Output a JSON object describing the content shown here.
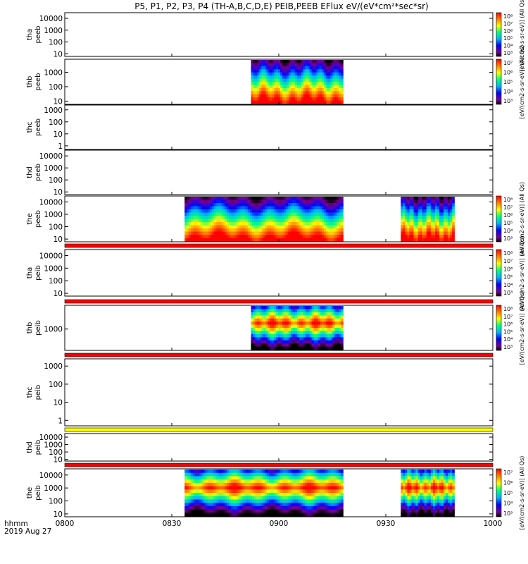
{
  "title": "P5, P1, P2, P3, P4 (TH-A,B,C,D,E) PEIB,PEEB EFlux eV/(eV*cm²*sec*sr)",
  "xaxis": {
    "ticks": [
      "0800",
      "0830",
      "0900",
      "0930",
      "1000"
    ],
    "tick_hours": [
      8.0,
      8.5,
      9.0,
      9.5,
      10.0
    ],
    "range_hours": [
      8.0,
      10.0
    ],
    "stamp_line1": "hhmm",
    "stamp_line2": "2019 Aug 27"
  },
  "colors": {
    "sat_bar_red": "#ff0000",
    "sat_bar_yellow": "#ffff00",
    "colormap": [
      "#000000",
      "#7a0096",
      "#0000ff",
      "#00b4ff",
      "#00ff80",
      "#ffff00",
      "#ff8000",
      "#ff0000"
    ]
  },
  "colorbars": [
    {
      "panel": "tha_peeb",
      "ticks": [
        "10⁸",
        "10⁷",
        "10⁶",
        "10⁵",
        "10⁴",
        "10³"
      ],
      "label": "[eV/(cm2-s-sr-eV)] (All Qs)"
    },
    {
      "panel": "thb_peeb",
      "ticks": [
        "10⁷",
        "10⁶",
        "10⁵",
        "10⁴",
        "10³"
      ],
      "label": "[eV/(cm2-s-sr-eV)] (All Qs)"
    },
    {
      "panel": "the_peeb",
      "ticks": [
        "10⁸",
        "10⁷",
        "10⁶",
        "10⁵",
        "10⁴",
        "10³"
      ],
      "label": "[eV/(cm2-s-sr-eV)] (All Qs)"
    },
    {
      "panel": "tha_peib",
      "ticks": [
        "10⁸",
        "10⁷",
        "10⁶",
        "10⁵",
        "10⁴",
        "10³"
      ],
      "label": "[eV/(cm2-s-sr-eV)] (All Qs)"
    },
    {
      "panel": "thb_peib",
      "ticks": [
        "10⁸",
        "10⁷",
        "10⁶",
        "10⁵",
        "10⁴",
        "10³"
      ],
      "label": "[eV/(cm2-s-sr-eV)] (All Qs)"
    },
    {
      "panel": "the_peib",
      "ticks": [
        "10⁷",
        "10⁶",
        "10⁵",
        "10⁴",
        "10³"
      ],
      "label": "[eV/(cm2-s-sr-eV)] (All Qs)"
    }
  ],
  "chart_data": [
    {
      "type": "heatmap",
      "id": "tha_peeb",
      "ylabel_line1": "tha",
      "ylabel_line2": "peeb",
      "yscale": "log",
      "yticks": [
        "10000",
        "1000",
        "100",
        "10"
      ],
      "ytick_values": [
        10000,
        1000,
        100,
        10
      ],
      "ylim": [
        6,
        30000
      ],
      "data_intervals_hours": [],
      "sat_bar": "none"
    },
    {
      "type": "heatmap",
      "id": "thb_peeb",
      "ylabel_line1": "thb",
      "ylabel_line2": "peeb",
      "yscale": "log",
      "yticks": [
        "1000",
        "100",
        "10"
      ],
      "ytick_values": [
        1000,
        100,
        10
      ],
      "ylim": [
        6,
        8000
      ],
      "data_intervals_hours": [
        [
          8.87,
          9.3
        ]
      ],
      "sat_bar": "none"
    },
    {
      "type": "heatmap",
      "id": "thc_peeb",
      "ylabel_line1": "thc",
      "ylabel_line2": "peeb",
      "yscale": "log",
      "yticks": [
        "1000",
        "100",
        "10",
        "1"
      ],
      "ytick_values": [
        1000,
        100,
        10,
        1
      ],
      "ylim": [
        0.5,
        2500
      ],
      "data_intervals_hours": [],
      "sat_bar": "none"
    },
    {
      "type": "heatmap",
      "id": "thd_peeb",
      "ylabel_line1": "thd",
      "ylabel_line2": "peeb",
      "yscale": "log",
      "yticks": [
        "10000",
        "1000",
        "100",
        "10"
      ],
      "ytick_values": [
        10000,
        1000,
        100,
        10
      ],
      "ylim": [
        6,
        30000
      ],
      "data_intervals_hours": [],
      "sat_bar": "none"
    },
    {
      "type": "heatmap",
      "id": "the_peeb",
      "ylabel_line1": "the",
      "ylabel_line2": "peeb",
      "yscale": "log",
      "yticks": [
        "10000",
        "1000",
        "100",
        "10"
      ],
      "ytick_values": [
        10000,
        1000,
        100,
        10
      ],
      "ylim": [
        6,
        30000
      ],
      "data_intervals_hours": [
        [
          8.56,
          9.3
        ],
        [
          9.57,
          9.82
        ]
      ],
      "sat_bar": "red"
    },
    {
      "type": "heatmap",
      "id": "tha_peib",
      "ylabel_line1": "tha",
      "ylabel_line2": "peib",
      "yscale": "log",
      "yticks": [
        "10000",
        "1000",
        "100",
        "10"
      ],
      "ytick_values": [
        10000,
        1000,
        100,
        10
      ],
      "ylim": [
        6,
        30000
      ],
      "data_intervals_hours": [],
      "sat_bar": "red"
    },
    {
      "type": "heatmap",
      "id": "thb_peib",
      "ylabel_line1": "thb",
      "ylabel_line2": "peib",
      "yscale": "log",
      "yticks": [
        "1000"
      ],
      "ytick_values": [
        1000
      ],
      "ylim": [
        200,
        6000
      ],
      "data_intervals_hours": [
        [
          8.87,
          9.3
        ]
      ],
      "sat_bar": "red"
    },
    {
      "type": "heatmap",
      "id": "thc_peib",
      "ylabel_line1": "thc",
      "ylabel_line2": "peib",
      "yscale": "log",
      "yticks": [
        "1000",
        "100",
        "10",
        "1"
      ],
      "ytick_values": [
        1000,
        100,
        10,
        1
      ],
      "ylim": [
        0.5,
        2500
      ],
      "data_intervals_hours": [],
      "sat_bar": "yellow"
    },
    {
      "type": "heatmap",
      "id": "thd_peib",
      "ylabel_line1": "thd",
      "ylabel_line2": "peib",
      "yscale": "log",
      "yticks": [
        "10000",
        "1000",
        "100",
        "10"
      ],
      "ytick_values": [
        10000,
        1000,
        100,
        10
      ],
      "ylim": [
        6,
        30000
      ],
      "data_intervals_hours": [],
      "sat_bar": "red"
    },
    {
      "type": "heatmap",
      "id": "the_peib",
      "ylabel_line1": "the",
      "ylabel_line2": "peib",
      "yscale": "log",
      "yticks": [
        "10000",
        "1000",
        "100",
        "10"
      ],
      "ytick_values": [
        10000,
        1000,
        100,
        10
      ],
      "ylim": [
        6,
        30000
      ],
      "data_intervals_hours": [
        [
          8.56,
          9.3
        ],
        [
          9.57,
          9.82
        ]
      ],
      "sat_bar": "none"
    }
  ]
}
